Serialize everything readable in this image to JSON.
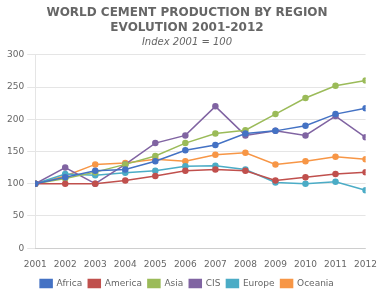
{
  "chart_data": {
    "type": "line",
    "title": [
      "WORLD CEMENT PRODUCTION BY REGION",
      "EVOLUTION 2001-2012"
    ],
    "subtitle": "Index 2001 = 100",
    "x": [
      2001,
      2002,
      2003,
      2004,
      2005,
      2006,
      2007,
      2008,
      2009,
      2010,
      2011,
      2012
    ],
    "series": [
      {
        "name": "Africa",
        "color": "#4472C4",
        "marker": "circle",
        "values": [
          100,
          110,
          120,
          122,
          135,
          152,
          160,
          178,
          182,
          190,
          208,
          217
        ]
      },
      {
        "name": "America",
        "color": "#C0504D",
        "marker": "circle",
        "values": [
          100,
          100,
          100,
          105,
          112,
          120,
          122,
          120,
          105,
          110,
          115,
          118
        ]
      },
      {
        "name": "Asia",
        "color": "#9BBB59",
        "marker": "circle",
        "values": [
          100,
          108,
          118,
          130,
          143,
          163,
          178,
          183,
          208,
          233,
          252,
          260
        ]
      },
      {
        "name": "CIS",
        "color": "#8064A2",
        "marker": "circle",
        "values": [
          100,
          125,
          100,
          130,
          163,
          175,
          220,
          175,
          182,
          175,
          205,
          172
        ]
      },
      {
        "name": "Europe",
        "color": "#4BACC6",
        "marker": "circle",
        "values": [
          100,
          115,
          113,
          117,
          120,
          127,
          128,
          122,
          102,
          100,
          103,
          90
        ]
      },
      {
        "name": "Oceania",
        "color": "#F79646",
        "marker": "circle",
        "values": [
          100,
          112,
          130,
          132,
          138,
          135,
          145,
          148,
          130,
          135,
          142,
          138
        ]
      }
    ],
    "xlim": [
      2001,
      2012
    ],
    "xticks": [
      2001,
      2002,
      2003,
      2004,
      2005,
      2006,
      2007,
      2008,
      2009,
      2010,
      2011,
      2012
    ],
    "ylim": [
      0,
      300
    ],
    "yticks": [
      0,
      50,
      100,
      150,
      200,
      250,
      300
    ],
    "grid": "y",
    "legend": "bottom"
  }
}
